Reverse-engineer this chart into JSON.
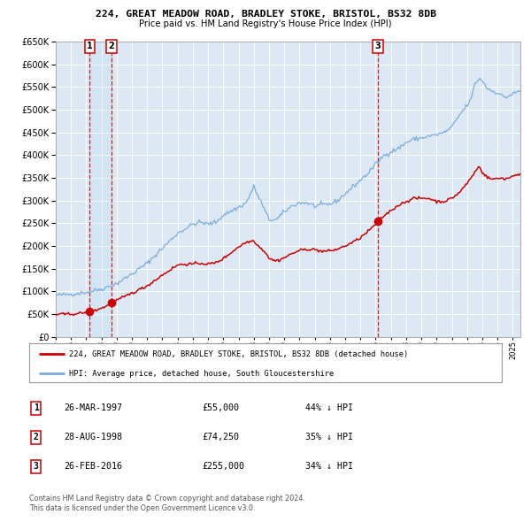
{
  "title1": "224, GREAT MEADOW ROAD, BRADLEY STOKE, BRISTOL, BS32 8DB",
  "title2": "Price paid vs. HM Land Registry's House Price Index (HPI)",
  "legend_line1": "224, GREAT MEADOW ROAD, BRADLEY STOKE, BRISTOL, BS32 8DB (detached house)",
  "legend_line2": "HPI: Average price, detached house, South Gloucestershire",
  "sale_dates": [
    1997.23,
    1998.66,
    2016.15
  ],
  "sale_prices": [
    55000,
    74250,
    255000
  ],
  "sale_labels": [
    "1",
    "2",
    "3"
  ],
  "table_rows": [
    {
      "num": "1",
      "date": "26-MAR-1997",
      "price": "£55,000",
      "pct": "44% ↓ HPI"
    },
    {
      "num": "2",
      "date": "28-AUG-1998",
      "price": "£74,250",
      "pct": "35% ↓ HPI"
    },
    {
      "num": "3",
      "date": "26-FEB-2016",
      "price": "£255,000",
      "pct": "34% ↓ HPI"
    }
  ],
  "footer1": "Contains HM Land Registry data © Crown copyright and database right 2024.",
  "footer2": "This data is licensed under the Open Government Licence v3.0.",
  "red_line_color": "#cc0000",
  "blue_line_color": "#7aadda",
  "plot_bg_color": "#dce9f5",
  "vline_color": "#cc0000",
  "ylim": [
    0,
    650000
  ],
  "xlim_start": 1995.0,
  "xlim_end": 2025.5
}
